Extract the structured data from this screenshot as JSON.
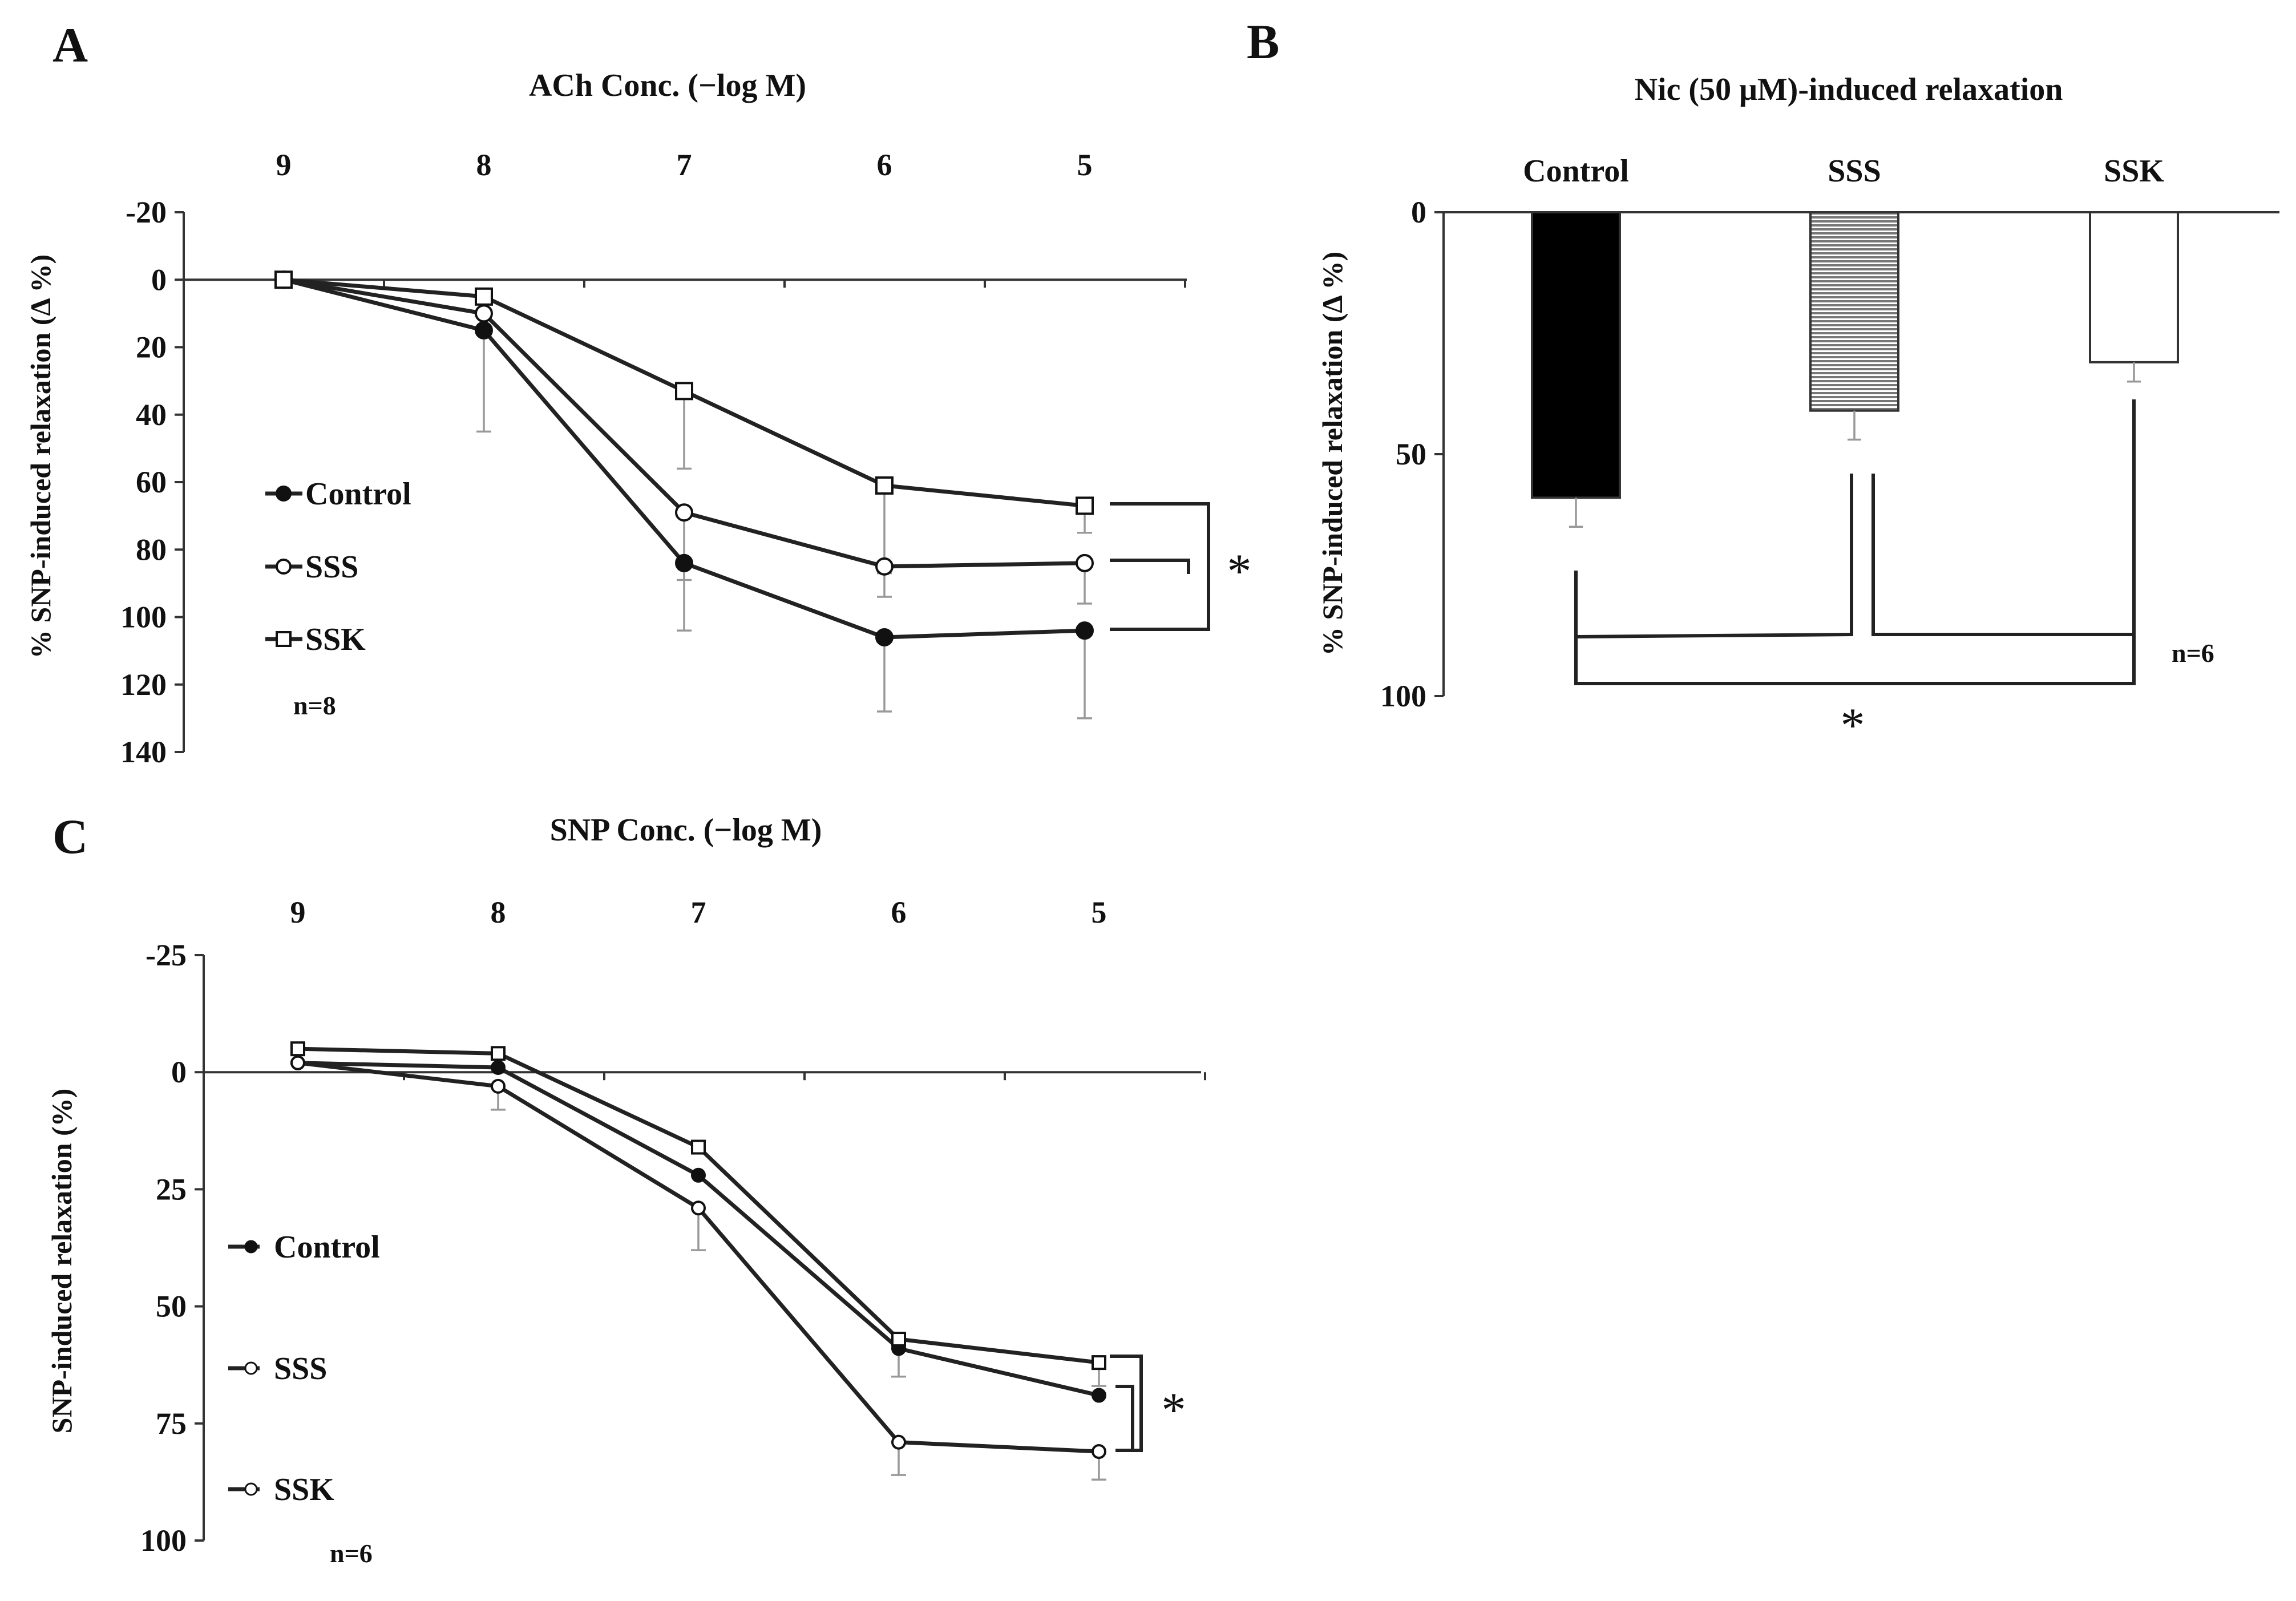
{
  "chart_data": [
    {
      "panel": "A",
      "type": "line",
      "title": "ACh Conc. (−log M)",
      "xlabel": "ACh Conc. (−log M)",
      "ylabel": "% SNP-induced relaxation (Δ %)",
      "categories": [
        "9",
        "8",
        "7",
        "6",
        "5"
      ],
      "y_ticks": [
        "-20",
        "0",
        "20",
        "40",
        "60",
        "80",
        "100",
        "120",
        "140"
      ],
      "ylim": [
        -20,
        140
      ],
      "y_inverted": true,
      "series": [
        {
          "name": "Control",
          "marker": "filled-circle",
          "values": [
            0,
            15,
            84,
            106,
            104
          ],
          "errors": [
            0,
            30,
            20,
            22,
            26
          ]
        },
        {
          "name": "SSS",
          "marker": "open-circle",
          "values": [
            0,
            10,
            69,
            85,
            84
          ],
          "errors": [
            0,
            6,
            20,
            9,
            12
          ]
        },
        {
          "name": "SSK",
          "marker": "open-square",
          "values": [
            0,
            5,
            33,
            61,
            67
          ],
          "errors": [
            0,
            9,
            23,
            26,
            8
          ]
        }
      ],
      "legend": [
        "Control",
        "SSS",
        "SSK"
      ],
      "n_label": "n=8",
      "significance": "*"
    },
    {
      "panel": "B",
      "type": "bar",
      "title": "Nic (50 μM)-induced relaxation",
      "ylabel": "% SNP-induced relaxation (Δ %)",
      "categories": [
        "Control",
        "SSS",
        "SSK"
      ],
      "values": [
        59,
        41,
        31
      ],
      "errors": [
        6,
        6,
        4
      ],
      "fills": [
        "solid-black",
        "horizontal-stripes",
        "white"
      ],
      "y_ticks": [
        "0",
        "50",
        "100"
      ],
      "ylim": [
        0,
        100
      ],
      "y_inverted": true,
      "n_label": "n=6",
      "significance": "*"
    },
    {
      "panel": "C",
      "type": "line",
      "title": "SNP Conc. (−log M)",
      "xlabel": "SNP Conc. (−log M)",
      "ylabel": "SNP-induced relaxation (%)",
      "categories": [
        "9",
        "8",
        "7",
        "6",
        "5"
      ],
      "y_ticks": [
        "-25",
        "0",
        "25",
        "50",
        "75",
        "100"
      ],
      "ylim": [
        -25,
        100
      ],
      "y_inverted": true,
      "series": [
        {
          "name": "Control",
          "marker": "filled-circle",
          "values": [
            -2,
            -1,
            22,
            59,
            69
          ],
          "errors": [
            0,
            0,
            0,
            0,
            0
          ]
        },
        {
          "name": "SSS",
          "marker": "open-circle",
          "values": [
            -2,
            3,
            29,
            79,
            81
          ],
          "errors": [
            0,
            5,
            9,
            7,
            6
          ]
        },
        {
          "name": "SSK",
          "marker": "open-square",
          "values": [
            -5,
            -4,
            16,
            57,
            62
          ],
          "errors": [
            0,
            0,
            0,
            8,
            5
          ]
        }
      ],
      "legend": [
        "Control",
        "SSS",
        "SSK"
      ],
      "n_label": "n=6",
      "significance": "*"
    }
  ]
}
